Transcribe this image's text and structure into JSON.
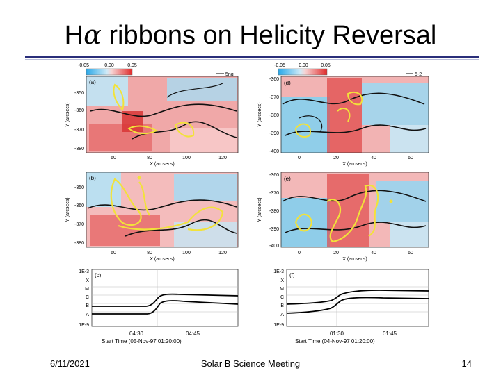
{
  "slide": {
    "title_prefix": "H",
    "title_symbol": "α",
    "title_rest": " ribbons on Helicity Reversal",
    "footer_date": "6/11/2021",
    "footer_meeting": "Solar B Science Meeting",
    "footer_page": "14"
  },
  "colors": {
    "negative": "#5bc8f0",
    "positive": "#e84a4a",
    "ribbon": "#f2e23a",
    "rule": "#2a2e7a"
  },
  "colorbars": {
    "left": {
      "ticks": [
        "-0.05",
        "0.00",
        "0.05"
      ],
      "unit": "5ng"
    },
    "right": {
      "ticks": [
        "-0.05",
        "0.00",
        "0.05"
      ],
      "unit": "5-2"
    }
  },
  "panels": {
    "a": {
      "label": "(a)",
      "ylabel": "Y (arcsecs)",
      "xlabel": "X (arcsecs)",
      "yticks": [
        "-350",
        "-360",
        "-370",
        "-380"
      ],
      "xticks": [
        "60",
        "80",
        "100",
        "120"
      ]
    },
    "d": {
      "label": "(d)",
      "ylabel": "Y (arcsecs)",
      "xlabel": "X (arcsecs)",
      "yticks": [
        "-360",
        "-370",
        "-380",
        "-390",
        "-400"
      ],
      "xticks": [
        "0",
        "20",
        "40",
        "60"
      ]
    },
    "b": {
      "label": "(b)",
      "ylabel": "Y (arcsecs)",
      "xlabel": "X (arcsecs)",
      "yticks": [
        "-350",
        "-360",
        "-370",
        "-380"
      ],
      "xticks": [
        "60",
        "80",
        "100",
        "120"
      ]
    },
    "e": {
      "label": "(e)",
      "ylabel": "Y (arcsecs)",
      "xlabel": "X (arcsecs)",
      "yticks": [
        "-360",
        "-370",
        "-380",
        "-390",
        "-400"
      ],
      "xticks": [
        "0",
        "20",
        "40",
        "60"
      ]
    },
    "c": {
      "label": "(c)",
      "yticks": [
        "1E-3",
        "X",
        "M",
        "C",
        "B",
        "A",
        "1E-9"
      ],
      "xticks": [
        "04:30",
        "04:45"
      ],
      "start_text": "Start Time (05-Nov-97 01:20:00)"
    },
    "f": {
      "label": "(f)",
      "yticks": [
        "1E-3",
        "X",
        "M",
        "C",
        "B",
        "A",
        "1E-9"
      ],
      "xticks": [
        "01:30",
        "01:45"
      ],
      "start_text": "Start Time (04-Nov-97 01:20:00)"
    }
  }
}
